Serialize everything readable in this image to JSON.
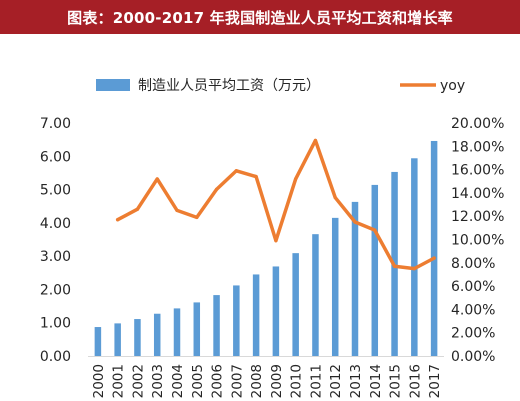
{
  "title": "图表：2000-2017 年我国制造业人员平均工资和增长率",
  "chart_data": {
    "type": "bar+line",
    "title": "图表：2000-2017 年我国制造业人员平均工资和增长率",
    "categories": [
      "2000",
      "2001",
      "2002",
      "2003",
      "2004",
      "2005",
      "2006",
      "2007",
      "2008",
      "2009",
      "2010",
      "2011",
      "2012",
      "2013",
      "2014",
      "2015",
      "2016",
      "2017"
    ],
    "series": [
      {
        "name": "制造业人员平均工资（万元）",
        "type": "bar",
        "axis": "left",
        "color": "#5b9bd5",
        "values": [
          0.87,
          0.98,
          1.11,
          1.27,
          1.43,
          1.61,
          1.83,
          2.12,
          2.45,
          2.69,
          3.09,
          3.66,
          4.15,
          4.63,
          5.14,
          5.53,
          5.94,
          6.46
        ]
      },
      {
        "name": "yoy",
        "type": "line",
        "axis": "right",
        "color": "#ed7d31",
        "values": [
          null,
          11.7,
          12.6,
          15.2,
          12.5,
          11.9,
          14.3,
          15.9,
          15.4,
          9.9,
          15.2,
          18.5,
          13.6,
          11.5,
          10.8,
          7.7,
          7.5,
          8.4
        ]
      }
    ],
    "y_left": {
      "lim": [
        0,
        7
      ],
      "ticks": [
        "0.00",
        "1.00",
        "2.00",
        "3.00",
        "4.00",
        "5.00",
        "6.00",
        "7.00"
      ]
    },
    "y_right": {
      "lim": [
        0,
        20
      ],
      "ticks": [
        "0.00%",
        "2.00%",
        "4.00%",
        "6.00%",
        "8.00%",
        "10.00%",
        "12.00%",
        "14.00%",
        "16.00%",
        "18.00%",
        "20.00%"
      ]
    },
    "legend_position": "top",
    "grid": false
  }
}
